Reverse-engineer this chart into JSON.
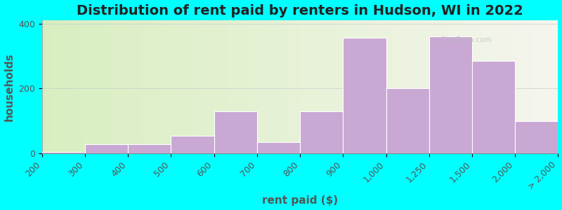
{
  "title": "Distribution of rent paid by renters in Hudson, WI in 2022",
  "xlabel": "rent paid ($)",
  "ylabel": "households",
  "tick_labels": [
    "200",
    "300",
    "400",
    "500",
    "600",
    "700",
    "800",
    "900",
    "1,000",
    "1,250",
    "1,500",
    "2,000",
    "> 2,000"
  ],
  "bar_values": [
    5,
    28,
    28,
    55,
    130,
    35,
    130,
    355,
    200,
    360,
    285,
    100
  ],
  "bar_color": "#c9a8d4",
  "bar_edge_color": "#ffffff",
  "background_color": "#00ffff",
  "ylim": [
    0,
    410
  ],
  "yticks": [
    0,
    200,
    400
  ],
  "title_fontsize": 14,
  "axis_label_fontsize": 11,
  "tick_fontsize": 9
}
